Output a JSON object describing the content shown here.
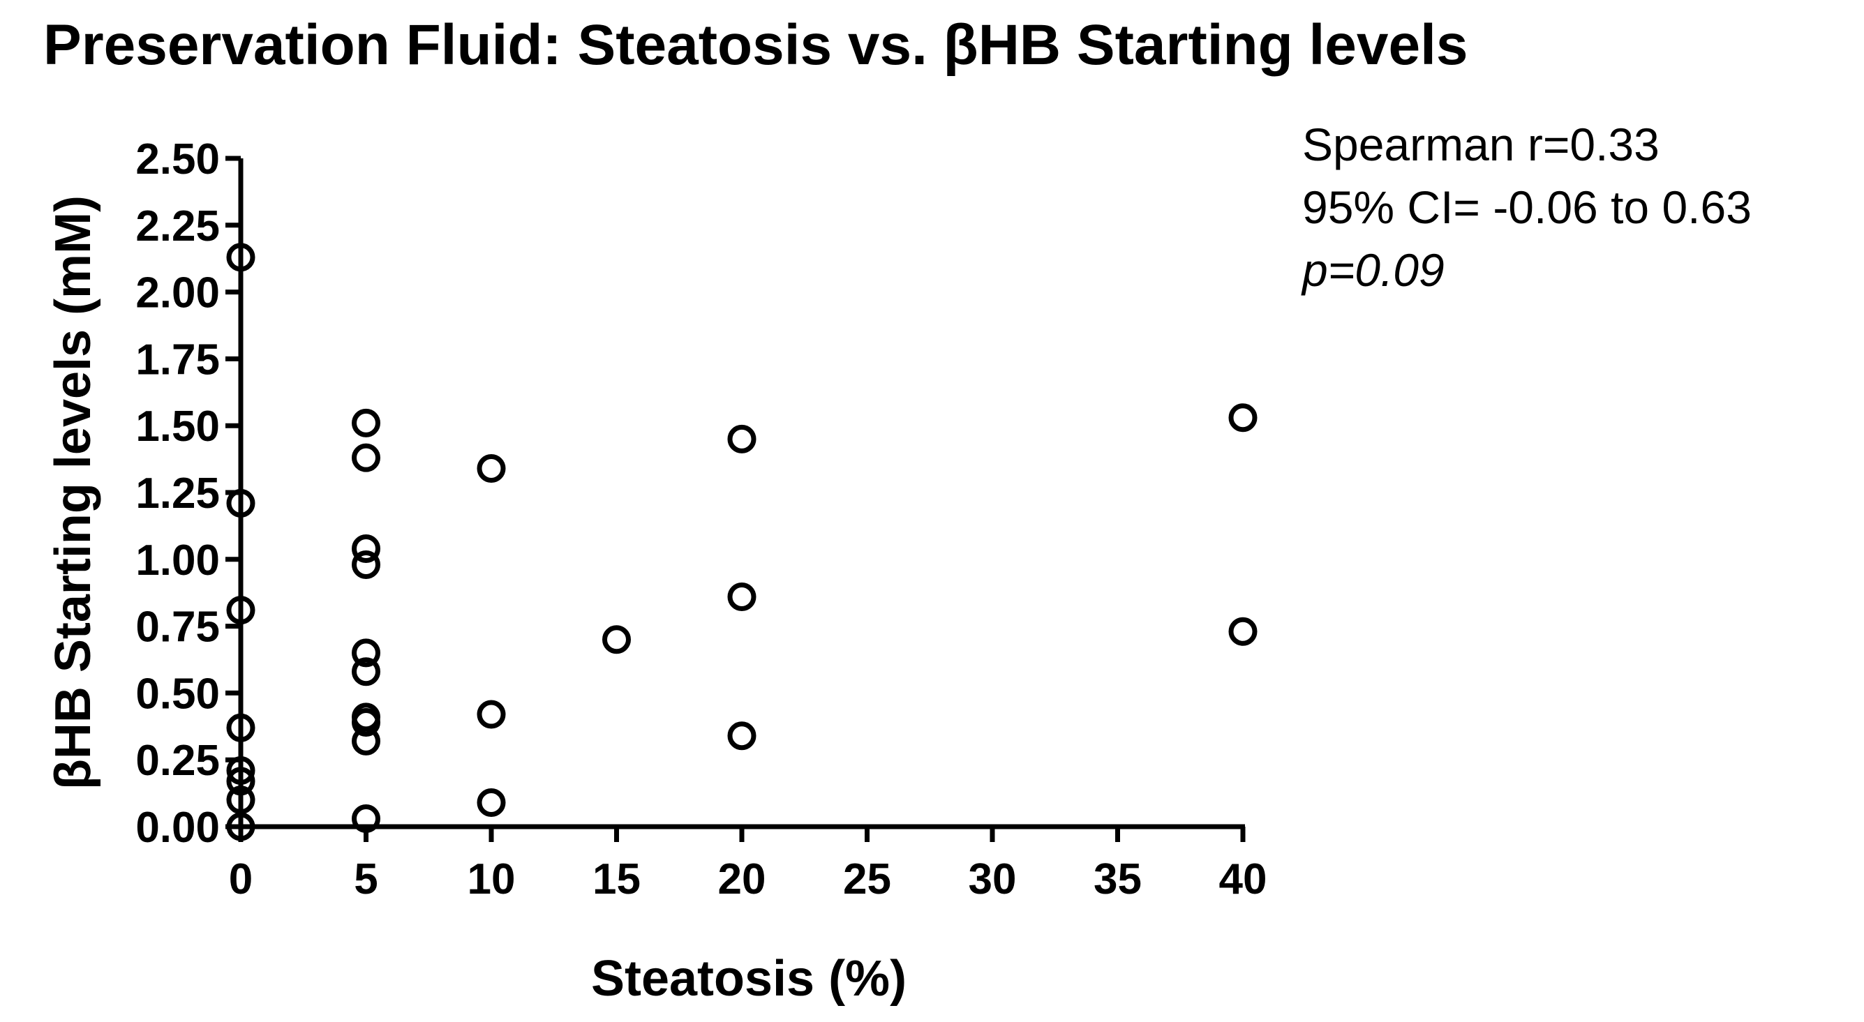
{
  "chart_data": {
    "type": "scatter",
    "title": "Preservation Fluid: Steatosis vs. βHB Starting levels",
    "xlabel": "Steatosis (%)",
    "ylabel": "βHB Starting levels (mM)",
    "xlim": [
      0,
      40
    ],
    "ylim": [
      0,
      2.5
    ],
    "x_ticks": [
      0,
      5,
      10,
      15,
      20,
      25,
      30,
      35,
      40
    ],
    "x_tick_labels": [
      "0",
      "5",
      "10",
      "15",
      "20",
      "25",
      "30",
      "35",
      "40"
    ],
    "y_ticks": [
      0,
      0.25,
      0.5,
      0.75,
      1.0,
      1.25,
      1.5,
      1.75,
      2.0,
      2.25,
      2.5
    ],
    "y_tick_labels": [
      "0.00",
      "0.25",
      "0.50",
      "0.75",
      "1.00",
      "1.25",
      "1.50",
      "1.75",
      "2.00",
      "2.25",
      "2.50"
    ],
    "grid": false,
    "marker": "open-circle",
    "marker_color": "#000000",
    "points": [
      {
        "x": 0,
        "y": 2.13
      },
      {
        "x": 0,
        "y": 1.21
      },
      {
        "x": 0,
        "y": 0.81
      },
      {
        "x": 0,
        "y": 0.37
      },
      {
        "x": 0,
        "y": 0.21
      },
      {
        "x": 0,
        "y": 0.17
      },
      {
        "x": 0,
        "y": 0.1
      },
      {
        "x": 0,
        "y": 0.0
      },
      {
        "x": 5,
        "y": 1.51
      },
      {
        "x": 5,
        "y": 1.38
      },
      {
        "x": 5,
        "y": 1.04
      },
      {
        "x": 5,
        "y": 0.98
      },
      {
        "x": 5,
        "y": 0.65
      },
      {
        "x": 5,
        "y": 0.58
      },
      {
        "x": 5,
        "y": 0.41
      },
      {
        "x": 5,
        "y": 0.39
      },
      {
        "x": 5,
        "y": 0.32
      },
      {
        "x": 5,
        "y": 0.03
      },
      {
        "x": 10,
        "y": 1.34
      },
      {
        "x": 10,
        "y": 0.42
      },
      {
        "x": 10,
        "y": 0.09
      },
      {
        "x": 15,
        "y": 0.7
      },
      {
        "x": 20,
        "y": 1.45
      },
      {
        "x": 20,
        "y": 0.86
      },
      {
        "x": 20,
        "y": 0.34
      },
      {
        "x": 40,
        "y": 1.53
      },
      {
        "x": 40,
        "y": 0.73
      }
    ],
    "annotations": {
      "line1": "Spearman r=0.33",
      "line2": "95% CI= -0.06 to 0.63",
      "line3": "p=0.09"
    }
  }
}
